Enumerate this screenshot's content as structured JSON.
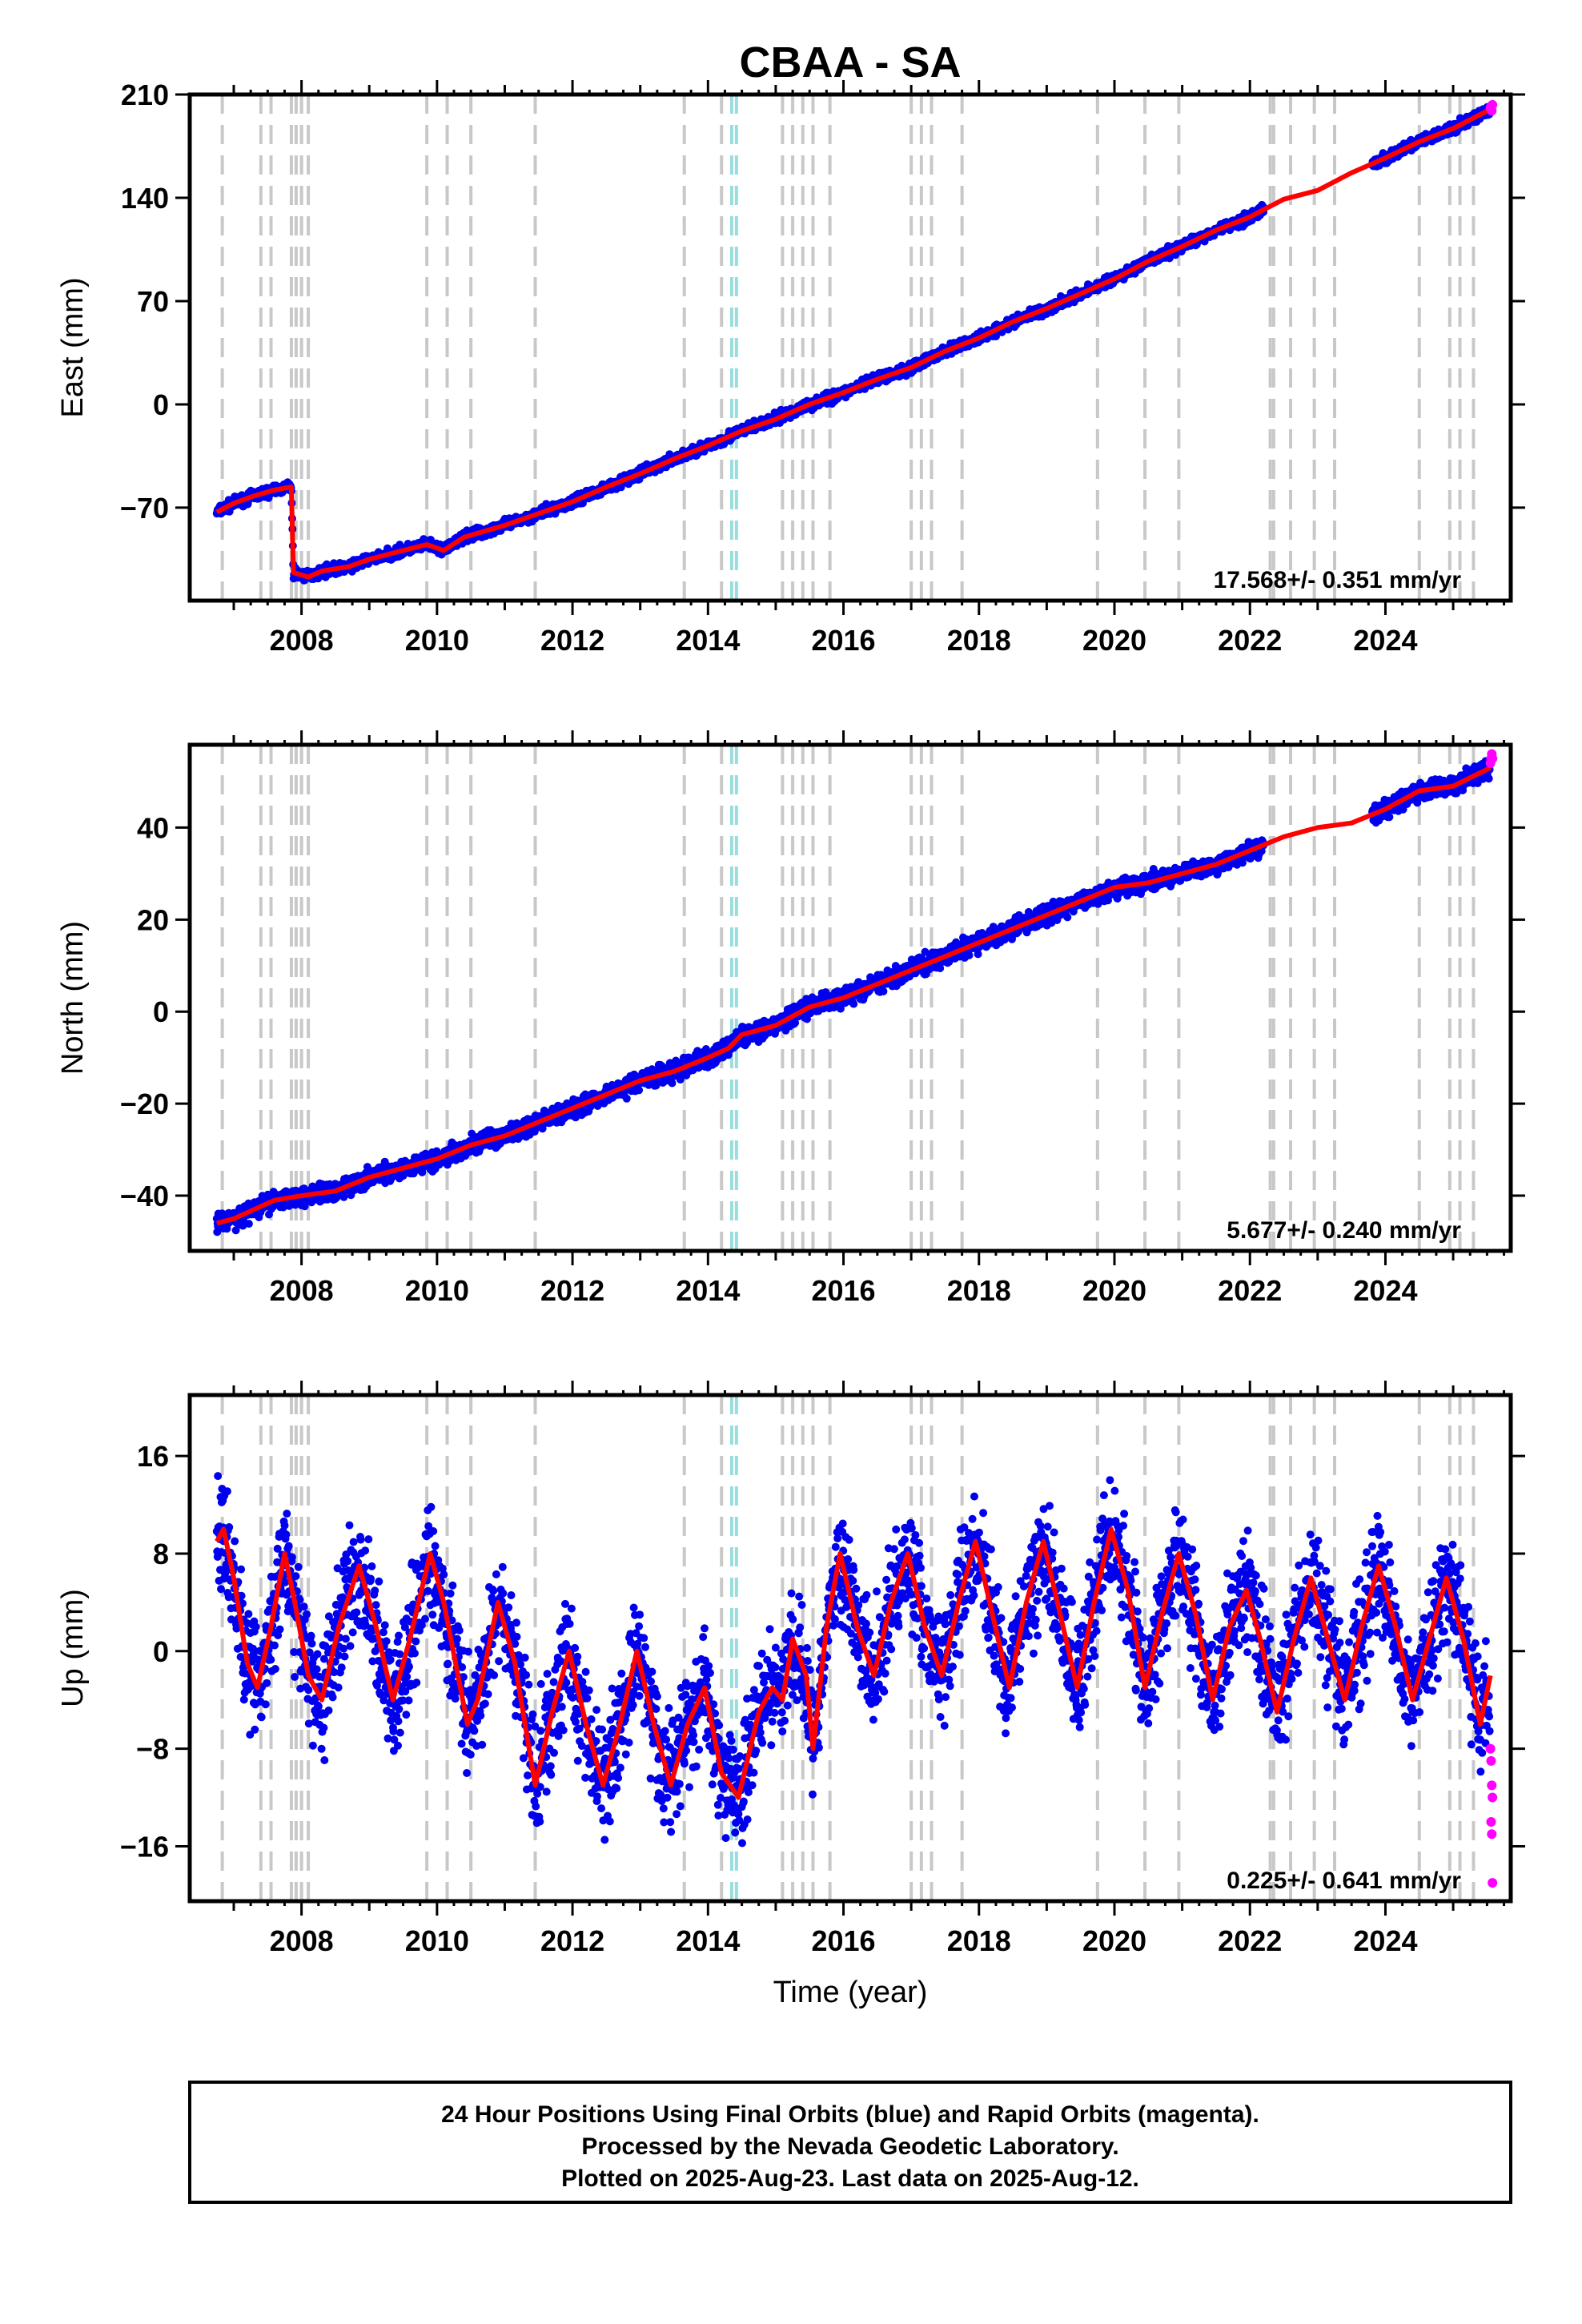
{
  "title": "CBAA - SA",
  "chart_data": [
    {
      "type": "scatter",
      "panel": "east",
      "ylabel": "East (mm)",
      "xlabel": "",
      "xlim": [
        2006.35,
        2025.85
      ],
      "ylim": [
        -133,
        210
      ],
      "yticks": [
        -70,
        0,
        70,
        140,
        210
      ],
      "xticks": [
        2008,
        2010,
        2012,
        2014,
        2016,
        2018,
        2020,
        2022,
        2024
      ],
      "rate_text": "17.568+/- 0.351 mm/yr",
      "fit_line": [
        [
          2006.75,
          -73
        ],
        [
          2007.0,
          -67
        ],
        [
          2007.3,
          -62
        ],
        [
          2007.6,
          -58
        ],
        [
          2007.85,
          -56
        ],
        [
          2007.88,
          -114
        ],
        [
          2008.1,
          -117
        ],
        [
          2008.3,
          -113
        ],
        [
          2008.7,
          -110
        ],
        [
          2009.0,
          -105
        ],
        [
          2009.5,
          -99
        ],
        [
          2009.85,
          -95
        ],
        [
          2010.1,
          -99
        ],
        [
          2010.4,
          -90
        ],
        [
          2011.0,
          -82
        ],
        [
          2011.5,
          -74
        ],
        [
          2012.0,
          -66
        ],
        [
          2012.5,
          -56
        ],
        [
          2013.0,
          -47
        ],
        [
          2013.5,
          -37
        ],
        [
          2014.0,
          -28
        ],
        [
          2014.5,
          -18
        ],
        [
          2015.0,
          -10
        ],
        [
          2015.5,
          0
        ],
        [
          2016.0,
          8
        ],
        [
          2016.5,
          17
        ],
        [
          2017.0,
          25
        ],
        [
          2017.5,
          36
        ],
        [
          2018.0,
          45
        ],
        [
          2018.5,
          56
        ],
        [
          2019.0,
          65
        ],
        [
          2019.5,
          75
        ],
        [
          2020.0,
          85
        ],
        [
          2020.5,
          97
        ],
        [
          2021.0,
          107
        ],
        [
          2021.5,
          118
        ],
        [
          2022.0,
          127
        ],
        [
          2022.5,
          139
        ],
        [
          2023.0,
          145
        ],
        [
          2023.5,
          157
        ],
        [
          2024.0,
          167
        ],
        [
          2024.5,
          178
        ],
        [
          2025.0,
          187
        ],
        [
          2025.55,
          200
        ]
      ],
      "rapid_points": [
        [
          2025.55,
          201
        ],
        [
          2025.56,
          202
        ],
        [
          2025.57,
          199
        ],
        [
          2025.58,
          203
        ]
      ],
      "final_color": "#0000ee",
      "rapid_color": "#ff00ff",
      "fit_color": "#ff0000"
    },
    {
      "type": "scatter",
      "panel": "north",
      "ylabel": "North (mm)",
      "xlabel": "",
      "xlim": [
        2006.35,
        2025.85
      ],
      "ylim": [
        -52,
        58
      ],
      "yticks": [
        -40,
        -20,
        0,
        20,
        40
      ],
      "xticks": [
        2008,
        2010,
        2012,
        2014,
        2016,
        2018,
        2020,
        2022,
        2024
      ],
      "rate_text": "5.677+/- 0.240 mm/yr",
      "fit_line": [
        [
          2006.75,
          -46
        ],
        [
          2007.0,
          -45
        ],
        [
          2007.3,
          -43
        ],
        [
          2007.6,
          -41
        ],
        [
          2008.0,
          -40
        ],
        [
          2008.5,
          -39
        ],
        [
          2009.0,
          -36
        ],
        [
          2009.5,
          -34
        ],
        [
          2010.0,
          -32
        ],
        [
          2010.5,
          -29
        ],
        [
          2011.0,
          -27
        ],
        [
          2011.5,
          -24
        ],
        [
          2012.0,
          -21
        ],
        [
          2012.5,
          -18
        ],
        [
          2013.0,
          -15
        ],
        [
          2013.5,
          -13
        ],
        [
          2014.0,
          -10
        ],
        [
          2014.3,
          -8
        ],
        [
          2014.5,
          -5
        ],
        [
          2015.0,
          -3
        ],
        [
          2015.5,
          1
        ],
        [
          2016.0,
          3
        ],
        [
          2016.5,
          6
        ],
        [
          2017.0,
          9
        ],
        [
          2017.5,
          12
        ],
        [
          2018.0,
          15
        ],
        [
          2018.5,
          18
        ],
        [
          2019.0,
          21
        ],
        [
          2019.5,
          24
        ],
        [
          2020.0,
          27
        ],
        [
          2020.5,
          28
        ],
        [
          2021.0,
          30
        ],
        [
          2021.5,
          32
        ],
        [
          2022.0,
          35
        ],
        [
          2022.5,
          38
        ],
        [
          2023.0,
          40
        ],
        [
          2023.5,
          41
        ],
        [
          2024.0,
          44
        ],
        [
          2024.5,
          48
        ],
        [
          2025.0,
          49
        ],
        [
          2025.55,
          53
        ]
      ],
      "rapid_points": [
        [
          2025.55,
          54
        ],
        [
          2025.56,
          55
        ],
        [
          2025.57,
          56
        ],
        [
          2025.58,
          55
        ]
      ],
      "final_color": "#0000ee",
      "rapid_color": "#ff00ff",
      "fit_color": "#ff0000"
    },
    {
      "type": "scatter",
      "panel": "up",
      "ylabel": "Up (mm)",
      "xlabel": "Time (year)",
      "xlim": [
        2006.35,
        2025.85
      ],
      "ylim": [
        -20.5,
        21
      ],
      "yticks": [
        -16,
        -8,
        0,
        8,
        16
      ],
      "xticks": [
        2008,
        2010,
        2012,
        2014,
        2016,
        2018,
        2020,
        2022,
        2024
      ],
      "rate_text": "0.225+/- 0.641 mm/yr",
      "fit_line": [
        [
          2006.75,
          9
        ],
        [
          2006.85,
          10
        ],
        [
          2007.0,
          6
        ],
        [
          2007.2,
          -1
        ],
        [
          2007.35,
          -3
        ],
        [
          2007.55,
          2
        ],
        [
          2007.75,
          8
        ],
        [
          2007.9,
          4
        ],
        [
          2008.1,
          -2
        ],
        [
          2008.3,
          -4
        ],
        [
          2008.55,
          2
        ],
        [
          2008.85,
          7
        ],
        [
          2009.1,
          2
        ],
        [
          2009.35,
          -4
        ],
        [
          2009.6,
          1
        ],
        [
          2009.9,
          8
        ],
        [
          2010.1,
          4
        ],
        [
          2010.45,
          -6
        ],
        [
          2010.6,
          -4
        ],
        [
          2010.9,
          4
        ],
        [
          2011.15,
          -1
        ],
        [
          2011.45,
          -11
        ],
        [
          2011.7,
          -5
        ],
        [
          2011.95,
          0
        ],
        [
          2012.2,
          -6
        ],
        [
          2012.45,
          -11
        ],
        [
          2012.7,
          -6
        ],
        [
          2012.95,
          0
        ],
        [
          2013.2,
          -6
        ],
        [
          2013.45,
          -11
        ],
        [
          2013.7,
          -6
        ],
        [
          2013.95,
          -3
        ],
        [
          2014.2,
          -10
        ],
        [
          2014.45,
          -12
        ],
        [
          2014.75,
          -5
        ],
        [
          2014.95,
          -3
        ],
        [
          2015.1,
          -4
        ],
        [
          2015.25,
          1
        ],
        [
          2015.45,
          -2
        ],
        [
          2015.55,
          -8
        ],
        [
          2015.75,
          2
        ],
        [
          2015.95,
          8
        ],
        [
          2016.2,
          2
        ],
        [
          2016.45,
          -2
        ],
        [
          2016.7,
          4
        ],
        [
          2016.95,
          8
        ],
        [
          2017.2,
          2
        ],
        [
          2017.45,
          -2
        ],
        [
          2017.7,
          4
        ],
        [
          2017.95,
          9
        ],
        [
          2018.2,
          3
        ],
        [
          2018.45,
          -3
        ],
        [
          2018.7,
          4
        ],
        [
          2018.95,
          9
        ],
        [
          2019.2,
          3
        ],
        [
          2019.45,
          -3
        ],
        [
          2019.7,
          4
        ],
        [
          2019.95,
          10
        ],
        [
          2020.2,
          5
        ],
        [
          2020.45,
          -3
        ],
        [
          2020.7,
          3
        ],
        [
          2020.95,
          8
        ],
        [
          2021.2,
          3
        ],
        [
          2021.45,
          -4
        ],
        [
          2021.7,
          2
        ],
        [
          2021.95,
          5
        ],
        [
          2022.15,
          1
        ],
        [
          2022.4,
          -5
        ],
        [
          2022.65,
          1
        ],
        [
          2022.9,
          6
        ],
        [
          2023.15,
          1
        ],
        [
          2023.4,
          -4
        ],
        [
          2023.65,
          2
        ],
        [
          2023.9,
          7
        ],
        [
          2024.15,
          2
        ],
        [
          2024.4,
          -4
        ],
        [
          2024.65,
          1
        ],
        [
          2024.9,
          6
        ],
        [
          2025.15,
          1
        ],
        [
          2025.4,
          -6
        ],
        [
          2025.55,
          -2
        ]
      ],
      "rapid_points": [
        [
          2025.55,
          -8
        ],
        [
          2025.56,
          -9
        ],
        [
          2025.57,
          -11
        ],
        [
          2025.58,
          -12
        ],
        [
          2025.56,
          -14
        ],
        [
          2025.57,
          -15
        ],
        [
          2025.58,
          -19
        ]
      ],
      "final_color": "#0000ee",
      "rapid_color": "#ff00ff",
      "fit_color": "#ff0000"
    }
  ],
  "equipment_change_years": [
    2006.83,
    2007.4,
    2007.55,
    2007.85,
    2007.92,
    2008.0,
    2008.1,
    2009.85,
    2010.15,
    2010.5,
    2011.45,
    2013.65,
    2014.2,
    2015.1,
    2015.25,
    2015.4,
    2015.55,
    2015.8,
    2017.0,
    2017.15,
    2017.3,
    2017.75,
    2019.75,
    2020.45,
    2020.95,
    2022.3,
    2022.35,
    2022.6,
    2022.95,
    2023.25,
    2024.5,
    2024.95,
    2025.1,
    2025.3
  ],
  "earthquake_years": [
    2014.35,
    2014.42
  ],
  "footer": {
    "line1": "24 Hour Positions Using Final Orbits (blue) and Rapid Orbits (magenta).",
    "line2": "Processed by the Nevada Geodetic Laboratory.",
    "line3": "Plotted on 2025-Aug-23. Last data on 2025-Aug-12."
  }
}
